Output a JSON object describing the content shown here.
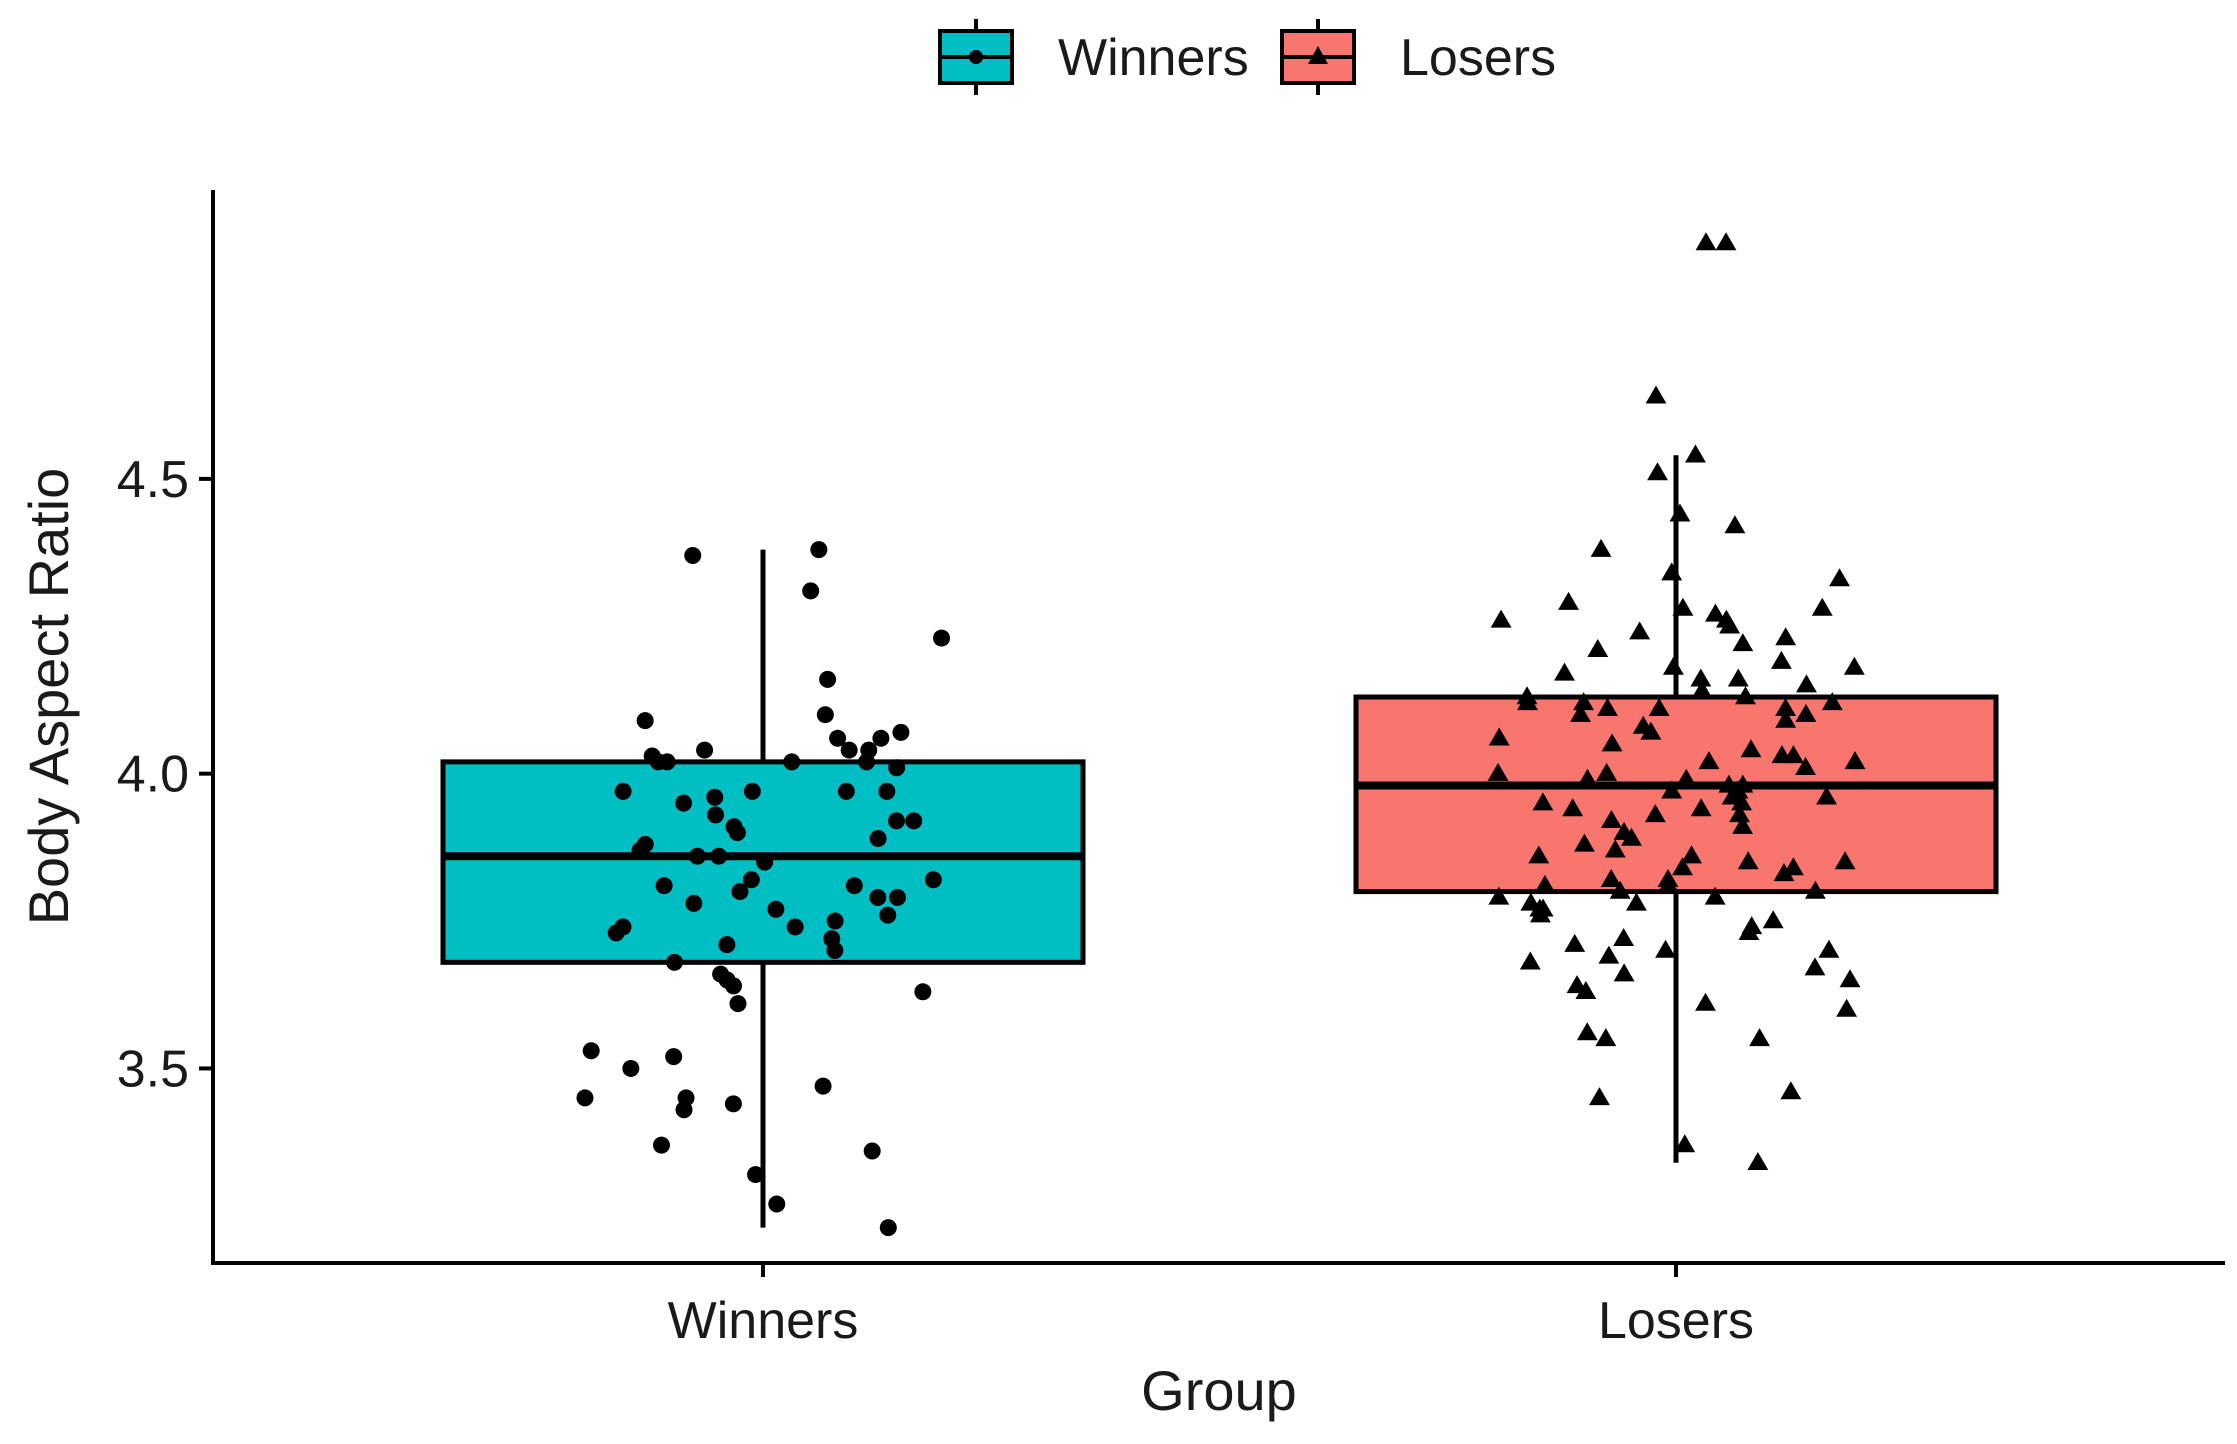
{
  "chart_data": {
    "type": "box",
    "title": "",
    "xlabel": "Group",
    "ylabel": "Body Aspect Ratio",
    "ylim": [
      3.17,
      4.99
    ],
    "yticks": [
      3.5,
      4.0,
      4.5
    ],
    "ytick_labels": [
      "3.5",
      "4.0",
      "4.5"
    ],
    "categories": [
      "Winners",
      "Losers"
    ],
    "legend": {
      "position": "top",
      "entries": [
        "Winners",
        "Losers"
      ]
    },
    "grid": false,
    "series": [
      {
        "name": "Winners",
        "color": "#00BFC4",
        "marker": "circle",
        "q1": 3.68,
        "median": 3.86,
        "q3": 4.02,
        "whisker_low": 3.23,
        "whisker_high": 4.38,
        "points": [
          4.38,
          4.37,
          4.31,
          4.23,
          4.16,
          4.1,
          4.09,
          4.07,
          4.06,
          4.06,
          4.04,
          4.04,
          4.04,
          4.03,
          4.02,
          4.02,
          4.02,
          4.02,
          4.01,
          3.97,
          3.97,
          3.97,
          3.97,
          3.96,
          3.95,
          3.93,
          3.92,
          3.92,
          3.91,
          3.9,
          3.89,
          3.88,
          3.87,
          3.86,
          3.86,
          3.85,
          3.82,
          3.82,
          3.81,
          3.81,
          3.8,
          3.79,
          3.79,
          3.78,
          3.77,
          3.76,
          3.75,
          3.74,
          3.74,
          3.73,
          3.72,
          3.71,
          3.7,
          3.68,
          3.66,
          3.65,
          3.64,
          3.63,
          3.61,
          3.53,
          3.52,
          3.5,
          3.47,
          3.45,
          3.45,
          3.43,
          3.44,
          3.37,
          3.36,
          3.32,
          3.27,
          3.23
        ]
      },
      {
        "name": "Losers",
        "color": "#F8766D",
        "marker": "triangle",
        "q1": 3.8,
        "median": 3.98,
        "q3": 4.13,
        "whisker_low": 3.34,
        "whisker_high": 4.54,
        "outliers": [
          4.9,
          4.9,
          4.64
        ],
        "points": [
          4.54,
          4.51,
          4.44,
          4.42,
          4.38,
          4.34,
          4.33,
          4.29,
          4.28,
          4.28,
          4.27,
          4.26,
          4.26,
          4.25,
          4.24,
          4.23,
          4.22,
          4.21,
          4.19,
          4.18,
          4.18,
          4.17,
          4.16,
          4.16,
          4.15,
          4.14,
          4.13,
          4.13,
          4.12,
          4.12,
          4.12,
          4.11,
          4.11,
          4.11,
          4.1,
          4.1,
          4.09,
          4.08,
          4.07,
          4.06,
          4.05,
          4.04,
          4.03,
          4.03,
          4.02,
          4.02,
          4.01,
          4.0,
          4.0,
          3.99,
          3.99,
          3.98,
          3.98,
          3.97,
          3.97,
          3.96,
          3.96,
          3.95,
          3.95,
          3.94,
          3.94,
          3.93,
          3.93,
          3.92,
          3.91,
          3.9,
          3.89,
          3.88,
          3.87,
          3.86,
          3.86,
          3.85,
          3.85,
          3.84,
          3.84,
          3.83,
          3.82,
          3.82,
          3.81,
          3.81,
          3.8,
          3.8,
          3.79,
          3.79,
          3.78,
          3.78,
          3.77,
          3.77,
          3.76,
          3.75,
          3.74,
          3.73,
          3.72,
          3.71,
          3.7,
          3.7,
          3.69,
          3.68,
          3.67,
          3.66,
          3.65,
          3.64,
          3.63,
          3.61,
          3.6,
          3.56,
          3.55,
          3.55,
          3.46,
          3.45,
          3.37,
          3.34
        ]
      }
    ]
  }
}
